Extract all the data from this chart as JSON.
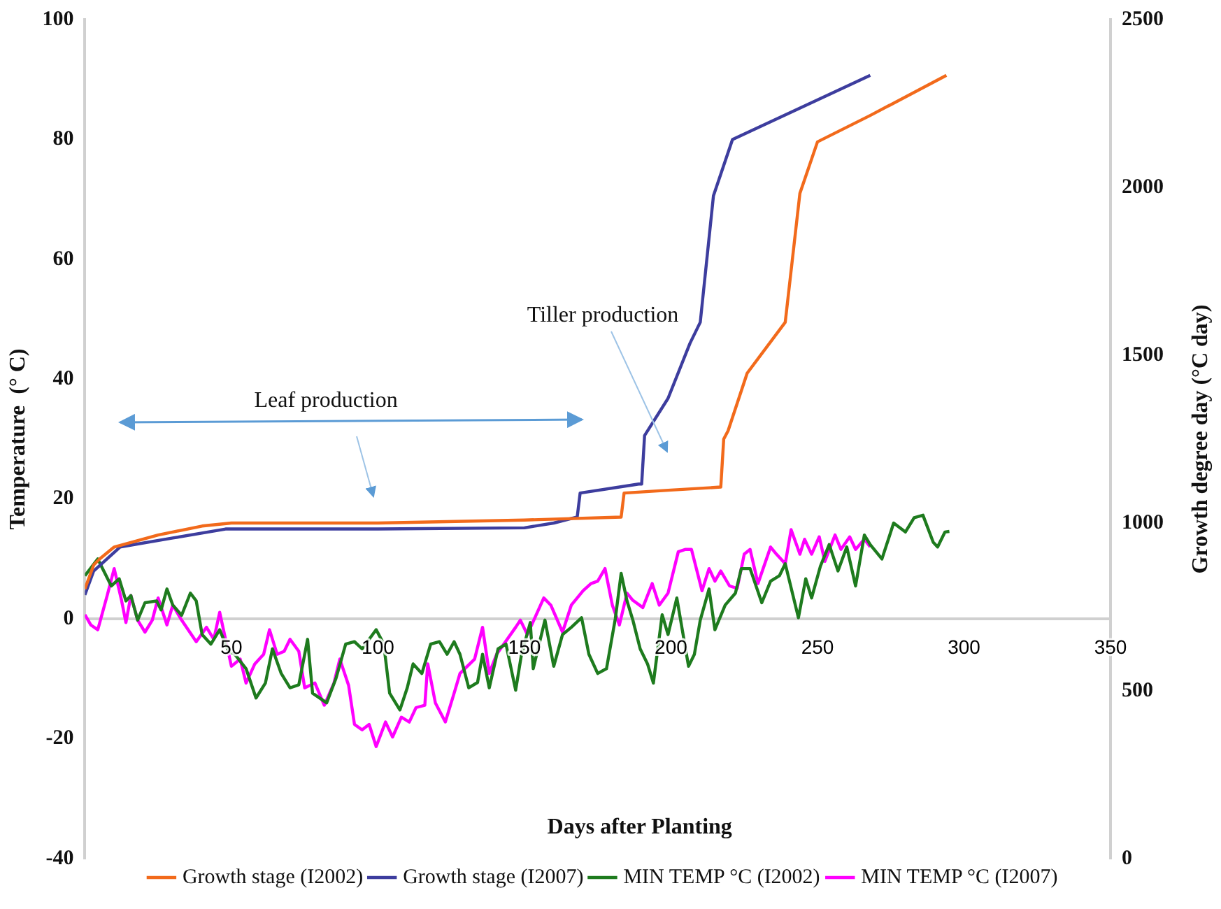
{
  "chart_data": {
    "type": "line",
    "xlabel": "Days after Planting",
    "ylabel": "Temperature  (° C)",
    "y2label": "Growth degree day (°C day)",
    "annotations": [
      "Leaf production",
      "Tiller production"
    ],
    "xlim": [
      0,
      350
    ],
    "xticks": [
      50,
      100,
      150,
      200,
      250,
      300,
      350
    ],
    "ylim": [
      -40,
      100
    ],
    "yticks": [
      -40,
      -20,
      0,
      20,
      40,
      60,
      80,
      100
    ],
    "y2lim": [
      0,
      2500
    ],
    "y2ticks": [
      0,
      500,
      1000,
      1500,
      2000,
      2500
    ],
    "legend": "bottom",
    "marker": "none",
    "line_style": "solid",
    "series": [
      {
        "name": "Growth stage (I2002)",
        "color": "#f26a1b",
        "x": [
          0,
          3,
          5,
          10,
          25,
          40,
          50,
          100,
          150,
          183,
          184,
          200,
          217,
          218,
          219.5,
          226,
          239,
          244,
          250,
          268,
          294
        ],
        "values": [
          5,
          9,
          10,
          12,
          14,
          15.5,
          16,
          16,
          16.5,
          17,
          21,
          21.5,
          22,
          30,
          31.4,
          41,
          49.5,
          71,
          79.6,
          84,
          90.7
        ]
      },
      {
        "name": "Growth stage (I2007)",
        "color": "#3d3d9e",
        "x": [
          0,
          3,
          12,
          30,
          48,
          100,
          150,
          160,
          168,
          169,
          189,
          190,
          191,
          199,
          206.5,
          210,
          214.5,
          221,
          268
        ],
        "values": [
          4,
          8,
          12,
          13.5,
          15,
          15,
          15.2,
          16,
          17,
          21,
          22.5,
          22.5,
          30.6,
          36.8,
          46,
          49.5,
          70.6,
          80,
          90.7
        ]
      },
      {
        "name": "MIN TEMP °C (I2002)",
        "color": "#1e7b1e",
        "x": [
          0,
          4.4,
          9,
          11.7,
          14,
          15.7,
          18,
          20.5,
          24.5,
          26,
          28,
          30,
          33,
          36,
          38,
          40,
          43,
          46,
          49,
          51,
          55,
          58.4,
          61.6,
          64,
          67,
          70,
          73,
          76,
          77.7,
          82.5,
          85.7,
          89,
          92,
          94.6,
          99.4,
          102,
          104,
          107.5,
          110,
          112,
          115,
          118,
          121,
          123.6,
          126,
          128,
          131,
          134,
          135.7,
          138,
          141,
          143.7,
          147,
          149,
          152,
          153,
          157,
          160,
          163,
          166,
          169.5,
          172,
          175,
          178,
          181,
          183,
          185,
          187,
          189.5,
          192,
          194,
          197,
          199,
          202,
          206,
          208,
          210,
          213,
          215,
          218.5,
          222,
          224,
          227,
          231,
          234,
          237,
          239,
          243.5,
          246,
          248,
          251,
          254,
          257,
          260,
          263,
          266,
          268,
          272,
          276,
          280,
          283,
          286,
          289.5,
          291,
          293.5,
          295
        ],
        "values": [
          7.2,
          10,
          5.5,
          6.7,
          3,
          3.9,
          -0.2,
          2.7,
          3,
          1.5,
          5,
          2.3,
          0.6,
          4.3,
          3,
          -2.6,
          -4.2,
          -1.8,
          -5.4,
          -5.8,
          -8.3,
          -13.2,
          -10.7,
          -5,
          -9.1,
          -11.5,
          -11,
          -3.4,
          -12.4,
          -14,
          -9.9,
          -4.2,
          -3.8,
          -5,
          -1.8,
          -4.2,
          -12.4,
          -15.2,
          -11.5,
          -7.5,
          -9.1,
          -4.2,
          -3.8,
          -5.9,
          -3.8,
          -5.9,
          -11.5,
          -10.6,
          -5.9,
          -11.5,
          -5,
          -4.2,
          -11.9,
          -5.9,
          -0.6,
          -8.3,
          -0.2,
          -7.9,
          -2.6,
          -1.4,
          0.2,
          -5.9,
          -9.1,
          -8.3,
          0,
          7.6,
          3,
          -0.2,
          -5,
          -7.5,
          -10.7,
          0.7,
          -2.6,
          3.5,
          -7.9,
          -5.9,
          -0.2,
          5,
          -1.8,
          2.3,
          4.3,
          8.4,
          8.4,
          2.7,
          6.3,
          7.2,
          9.2,
          0.2,
          6.7,
          3.5,
          8.8,
          12.4,
          8,
          12,
          5.5,
          14,
          12.4,
          10,
          16,
          14.5,
          16.9,
          17.3,
          12.8,
          12,
          14.5,
          14.6
        ]
      },
      {
        "name": "MIN TEMP °C (I2007)",
        "color": "#ff00ff",
        "x": [
          0,
          2,
          4.4,
          7.6,
          10,
          12.5,
          14,
          15.7,
          18,
          20.5,
          23,
          25,
          28,
          30,
          33,
          38,
          41.5,
          44,
          46,
          50,
          53,
          55,
          58,
          61,
          63,
          65.6,
          68,
          70,
          73,
          75,
          78.5,
          81.7,
          85,
          87,
          90,
          92,
          94.6,
          97,
          99.4,
          102.6,
          105,
          108,
          110.7,
          113,
          116,
          117,
          119.6,
          123,
          126,
          128,
          133,
          135.7,
          138,
          140.5,
          147,
          148.6,
          151,
          156.6,
          159,
          163,
          166,
          170,
          172.7,
          175,
          177.5,
          180,
          182.4,
          185,
          187,
          190.4,
          193.6,
          196,
          199,
          202.5,
          205,
          207,
          210.6,
          213,
          215,
          217,
          220,
          222.6,
          225,
          227,
          229.7,
          234,
          236,
          239,
          241,
          244,
          245.6,
          248,
          250.6,
          252.5,
          256,
          258,
          261,
          263,
          266,
          268
        ],
        "values": [
          0.7,
          -1,
          -1.8,
          3.9,
          8.4,
          3.1,
          -0.6,
          3.9,
          -0.2,
          -2.2,
          -0.2,
          3.5,
          -1,
          2.3,
          -0.2,
          -3.8,
          -1.4,
          -3.4,
          1.1,
          -7.9,
          -6.7,
          -10.7,
          -7.5,
          -5.9,
          -1.8,
          -5.9,
          -5.4,
          -3.4,
          -5.4,
          -11.5,
          -10.7,
          -14.4,
          -10.7,
          -6.7,
          -11.1,
          -17.6,
          -18.5,
          -17.6,
          -21.3,
          -17.2,
          -19.7,
          -16.4,
          -17.2,
          -14.8,
          -14.4,
          -7.5,
          -14,
          -17.2,
          -12.4,
          -9.1,
          -6.7,
          -1.4,
          -9.1,
          -5.9,
          -1.4,
          -0.2,
          -2.6,
          3.5,
          2.3,
          -2.2,
          2.3,
          4.7,
          5.9,
          6.3,
          8.4,
          2.3,
          -1,
          4.3,
          3.1,
          1.9,
          5.9,
          2.3,
          4.3,
          11.2,
          11.6,
          11.6,
          4.7,
          8.4,
          6.3,
          8,
          5.5,
          5.1,
          10.8,
          11.6,
          5.9,
          12,
          10.8,
          9.2,
          14.9,
          10.8,
          13.3,
          10.8,
          13.7,
          9.6,
          14,
          11.6,
          13.7,
          11.6,
          13.3,
          12
        ]
      }
    ]
  }
}
